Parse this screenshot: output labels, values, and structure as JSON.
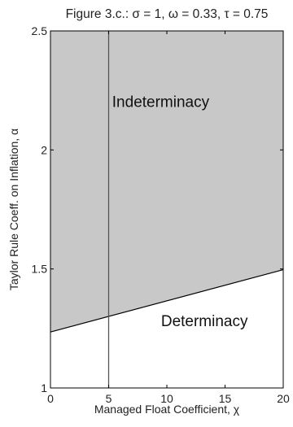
{
  "chart_data": {
    "type": "area",
    "title": "Figure 3.c.: σ = 1, ω = 0.33, τ = 0.75",
    "xlabel": "Managed Float Coefficient, χ",
    "ylabel": "Taylor Rule Coeff. on Inflation, α",
    "xlim": [
      0,
      20
    ],
    "ylim": [
      1,
      2.5
    ],
    "x_ticks": [
      0,
      5,
      10,
      15,
      20
    ],
    "x_tick_labels": [
      "0",
      "5",
      "10",
      "15",
      "20"
    ],
    "y_ticks": [
      1,
      1.5,
      2,
      2.5
    ],
    "y_tick_labels": [
      "1",
      "1.5",
      "2",
      "2.5"
    ],
    "grid": false,
    "boundary": {
      "x": [
        0,
        20
      ],
      "y": [
        1.235,
        1.497
      ]
    },
    "vertical_line_x": 5,
    "regions": {
      "upper_label": "Indeterminacy",
      "upper_label_pos": {
        "x": 5.3,
        "y": 2.18
      },
      "upper_fill": "#c8c8c8",
      "lower_label": "Determinacy",
      "lower_label_pos": {
        "x": 9.5,
        "y": 1.26
      },
      "lower_fill": "#ffffff"
    }
  }
}
